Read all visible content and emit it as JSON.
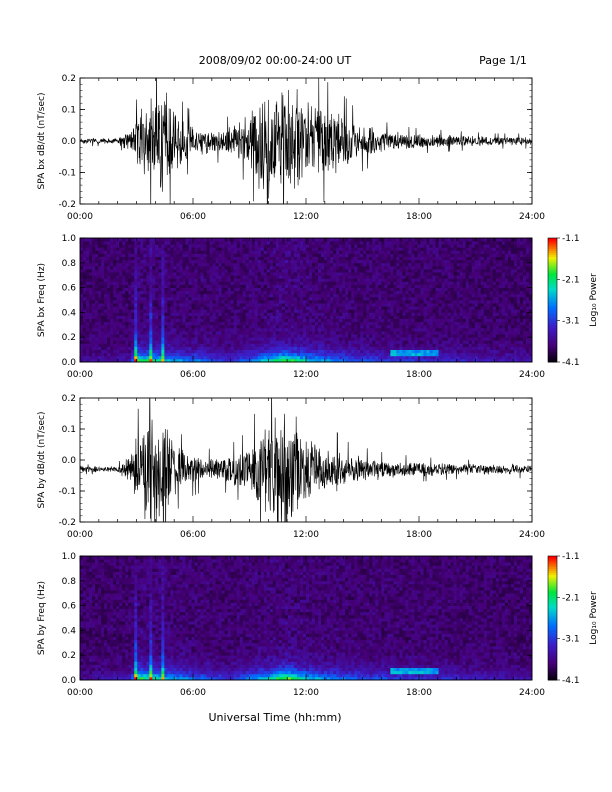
{
  "header": {
    "date_range": "2008/09/02  00:00-24:00 UT",
    "page": "Page 1/1"
  },
  "x_axis_title": "Universal Time (hh:mm)",
  "chart_data": [
    {
      "type": "line",
      "ylabel": "SPA bx dB/dt (nT/sec)",
      "xlim": [
        "00:00",
        "24:00"
      ],
      "x_ticks": [
        "00:00",
        "06:00",
        "12:00",
        "18:00",
        "24:00"
      ],
      "ylim": [
        -0.2,
        0.2
      ],
      "y_ticks": [
        "-0.2",
        "-0.1",
        "0.0",
        "0.1",
        "0.2"
      ],
      "baseline": 0.0,
      "x_hours": [
        0,
        2,
        2.7,
        3.2,
        3.7,
        4.4,
        5.0,
        5.6,
        6.2,
        7.0,
        8.0,
        9.0,
        9.5,
        10.0,
        10.5,
        11.0,
        11.5,
        12.0,
        12.5,
        13.0,
        13.5,
        14.0,
        14.5,
        15.0,
        16.0,
        17.0,
        18.0,
        20.0,
        22.0,
        24.0
      ],
      "amplitude": [
        0.01,
        0.01,
        0.04,
        0.11,
        0.14,
        0.2,
        0.1,
        0.07,
        0.05,
        0.04,
        0.05,
        0.09,
        0.16,
        0.2,
        0.2,
        0.2,
        0.2,
        0.15,
        0.13,
        0.12,
        0.11,
        0.09,
        0.07,
        0.06,
        0.04,
        0.03,
        0.025,
        0.02,
        0.015,
        0.015
      ]
    },
    {
      "type": "heatmap",
      "ylabel": "SPA bx Freq (Hz)",
      "xlim": [
        "00:00",
        "24:00"
      ],
      "x_ticks": [
        "00:00",
        "06:00",
        "12:00",
        "18:00",
        "24:00"
      ],
      "ylim": [
        0.0,
        1.0
      ],
      "y_ticks": [
        "0.0",
        "0.2",
        "0.4",
        "0.6",
        "0.8",
        "1.0"
      ],
      "colorbar": {
        "label": "Log₁₀ Power",
        "ticks": [
          "-1.1",
          "-2.1",
          "-3.1",
          "-4.1"
        ],
        "range": [
          -4.1,
          -1.1
        ]
      },
      "power_profile_hours": [
        0,
        2.7,
        3.0,
        5.0,
        8.0,
        9.5,
        10.5,
        11.0,
        12.0,
        13.5,
        15.0,
        18.0,
        24.0
      ],
      "power_profile_strength": [
        0.1,
        0.2,
        0.9,
        0.6,
        0.3,
        0.6,
        0.85,
        1.0,
        0.7,
        0.5,
        0.4,
        0.3,
        0.15
      ]
    },
    {
      "type": "line",
      "ylabel": "SPA by dB/dt (nT/sec)",
      "xlim": [
        "00:00",
        "24:00"
      ],
      "x_ticks": [
        "00:00",
        "06:00",
        "12:00",
        "18:00",
        "24:00"
      ],
      "ylim": [
        -0.2,
        0.2
      ],
      "y_ticks": [
        "-0.2",
        "-0.1",
        "0.0",
        "0.1",
        "0.2"
      ],
      "baseline": -0.03,
      "x_hours": [
        0,
        2,
        2.7,
        3.2,
        3.7,
        4.4,
        5.0,
        5.6,
        6.2,
        7.0,
        8.0,
        9.0,
        9.5,
        10.0,
        10.5,
        11.0,
        11.5,
        12.0,
        12.5,
        13.0,
        13.5,
        14.0,
        14.5,
        15.0,
        16.0,
        17.0,
        18.0,
        20.0,
        22.0,
        24.0
      ],
      "amplitude": [
        0.01,
        0.01,
        0.06,
        0.14,
        0.2,
        0.2,
        0.09,
        0.06,
        0.05,
        0.04,
        0.05,
        0.08,
        0.14,
        0.18,
        0.2,
        0.2,
        0.18,
        0.13,
        0.1,
        0.09,
        0.08,
        0.06,
        0.05,
        0.045,
        0.035,
        0.03,
        0.025,
        0.02,
        0.018,
        0.018
      ]
    },
    {
      "type": "heatmap",
      "ylabel": "SPA by Freq (Hz)",
      "xlim": [
        "00:00",
        "24:00"
      ],
      "x_ticks": [
        "00:00",
        "06:00",
        "12:00",
        "18:00",
        "24:00"
      ],
      "ylim": [
        0.0,
        1.0
      ],
      "y_ticks": [
        "0.0",
        "0.2",
        "0.4",
        "0.6",
        "0.8",
        "1.0"
      ],
      "colorbar": {
        "label": "Log₁₀ Power",
        "ticks": [
          "-1.1",
          "-2.1",
          "-3.1",
          "-4.1"
        ],
        "range": [
          -4.1,
          -1.1
        ]
      },
      "power_profile_hours": [
        0,
        2.7,
        3.0,
        5.0,
        8.0,
        9.5,
        10.5,
        11.0,
        12.0,
        13.5,
        15.0,
        18.0,
        24.0
      ],
      "power_profile_strength": [
        0.1,
        0.2,
        0.9,
        0.6,
        0.3,
        0.6,
        0.85,
        1.0,
        0.7,
        0.5,
        0.4,
        0.3,
        0.15
      ]
    }
  ]
}
